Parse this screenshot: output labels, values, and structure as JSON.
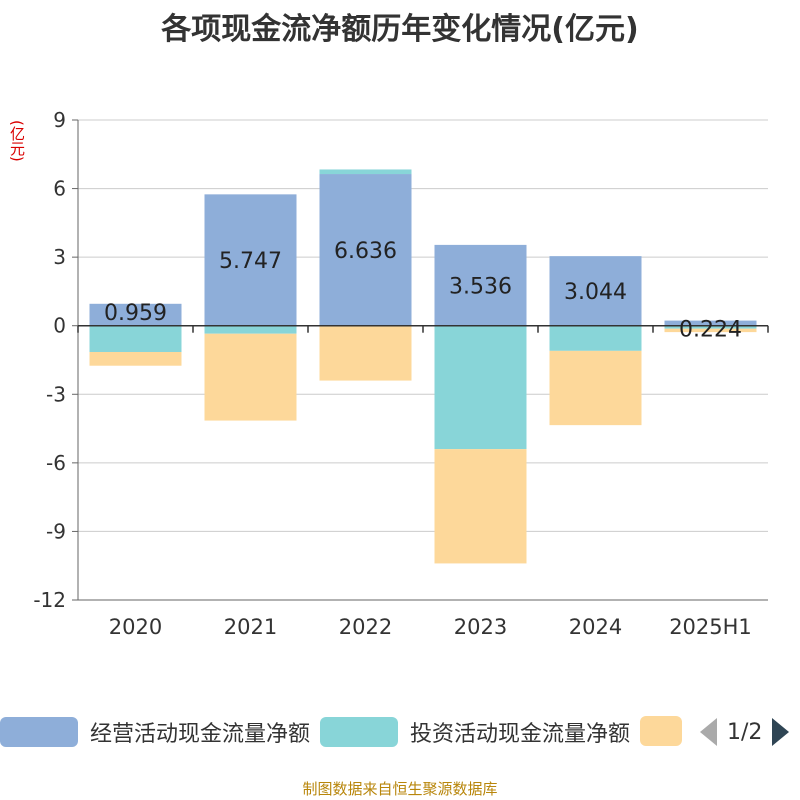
{
  "title": "各项现金流净额历年变化情况(亿元)",
  "unit_label": "(亿元)",
  "source": "制图数据来自恒生聚源数据库",
  "pager": "1/2",
  "chart_data": {
    "type": "bar",
    "stacked": true,
    "categories": [
      "2020",
      "2021",
      "2022",
      "2023",
      "2024",
      "2025H1"
    ],
    "ylim": [
      -12,
      9
    ],
    "yticks": [
      9,
      6,
      3,
      0,
      -3,
      -6,
      -9,
      -12
    ],
    "grid": true,
    "legend_position": "bottom",
    "series": [
      {
        "name": "经营活动现金流量净额",
        "color": "#8eaed9",
        "values": [
          0.959,
          5.747,
          6.636,
          3.536,
          3.044,
          0.224
        ],
        "labels": [
          "0.959",
          "5.747",
          "6.636",
          "3.536",
          "3.044",
          "0.224"
        ]
      },
      {
        "name": "投资活动现金流量净额",
        "color": "#88d5d8",
        "values": [
          -1.15,
          -0.35,
          0.2,
          -5.4,
          -1.1,
          -0.13
        ]
      },
      {
        "name": "",
        "color": "#fdd89a",
        "values": [
          -0.6,
          -3.8,
          -2.4,
          -5.0,
          -3.25,
          -0.15
        ]
      }
    ]
  }
}
